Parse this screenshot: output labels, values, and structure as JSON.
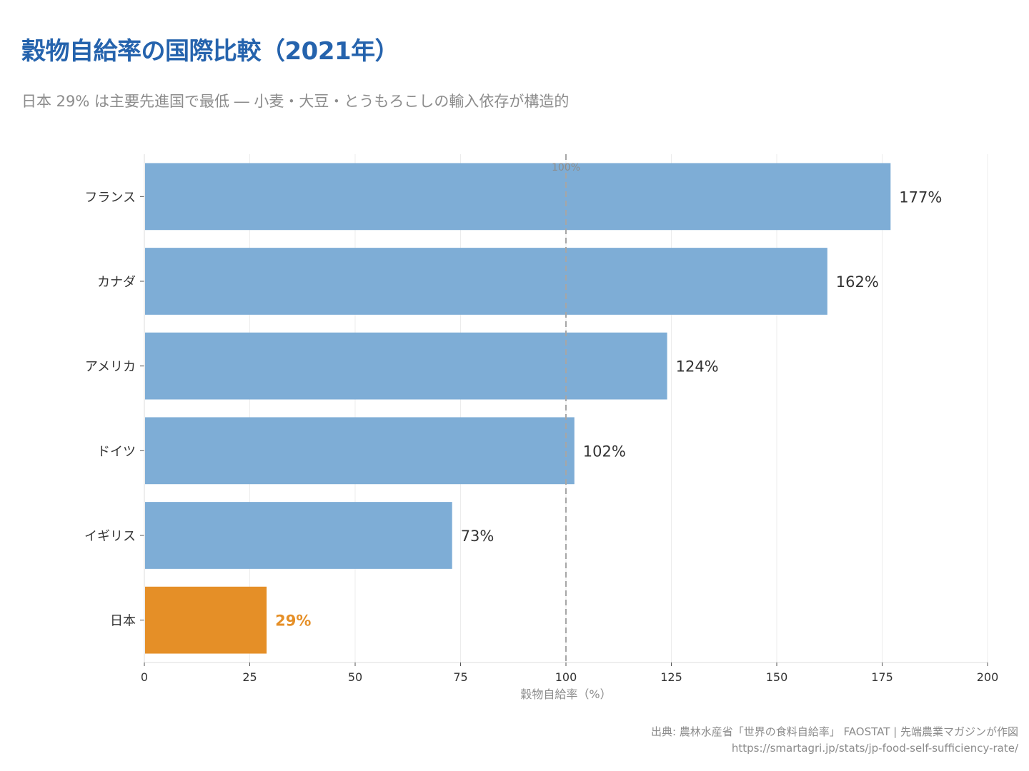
{
  "header": {
    "title": "穀物自給率の国際比較（2021年）",
    "subtitle": "日本 29% は主要先進国で最低 ― 小麦・大豆・とうもろこしの輸入依存が構造的"
  },
  "footer": {
    "source": "出典: 農林水産省「世界の食料自給率」 FAOSTAT | 先端農業マガジンが作図",
    "url": "https://smartagri.jp/stats/jp-food-self-sufficiency-rate/"
  },
  "colors": {
    "bar_default": "#7eadd6",
    "bar_highlight": "#e58f27",
    "title": "#2563ad",
    "reference_line": "#a6a6a6"
  },
  "chart_data": {
    "type": "bar",
    "orientation": "horizontal",
    "categories": [
      "フランス",
      "カナダ",
      "アメリカ",
      "ドイツ",
      "イギリス",
      "日本"
    ],
    "values": [
      177,
      162,
      124,
      102,
      73,
      29
    ],
    "value_labels": [
      "177%",
      "162%",
      "124%",
      "102%",
      "73%",
      "29%"
    ],
    "highlight": "日本",
    "xlabel": "穀物自給率（%）",
    "xlim": [
      0,
      200
    ],
    "xticks": [
      0,
      25,
      50,
      75,
      100,
      125,
      150,
      175,
      200
    ],
    "reference_line": {
      "value": 100,
      "label": "100%"
    },
    "grid": "vertical"
  }
}
